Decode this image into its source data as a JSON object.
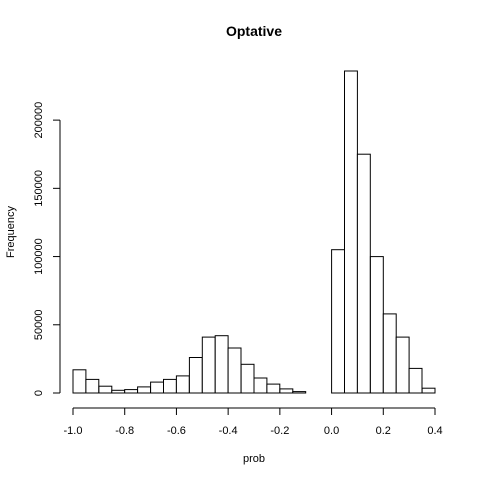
{
  "chart_data": {
    "type": "bar",
    "title": "Optative",
    "xlabel": "prob",
    "ylabel": "Frequency",
    "bin_width": 0.05,
    "bin_starts": [
      -1.0,
      -0.95,
      -0.9,
      -0.85,
      -0.8,
      -0.75,
      -0.7,
      -0.65,
      -0.6,
      -0.55,
      -0.5,
      -0.45,
      -0.4,
      -0.35,
      -0.3,
      -0.25,
      -0.2,
      -0.15,
      -0.1,
      -0.05,
      0.0,
      0.05,
      0.1,
      0.15,
      0.2,
      0.25,
      0.3,
      0.35
    ],
    "values": [
      17000,
      10000,
      5000,
      2000,
      2500,
      4500,
      8000,
      10000,
      12500,
      26000,
      41000,
      42000,
      33000,
      21000,
      11000,
      6500,
      3000,
      1000,
      0,
      0,
      105000,
      236000,
      175000,
      100000,
      58000,
      41000,
      18000,
      3500
    ],
    "xlim": [
      -1.0,
      0.4
    ],
    "ylim": [
      0,
      236000
    ],
    "x_ticks": [
      -1.0,
      -0.8,
      -0.6,
      -0.4,
      -0.2,
      0.0,
      0.2,
      0.4
    ],
    "x_tick_labels": [
      "-1.0",
      "-0.8",
      "-0.6",
      "-0.4",
      "-0.2",
      "0.0",
      "0.2",
      "0.4"
    ],
    "y_ticks": [
      0,
      50000,
      100000,
      150000,
      200000
    ],
    "y_tick_labels": [
      "0",
      "50000",
      "100000",
      "150000",
      "200000"
    ],
    "grid": false,
    "legend": "none"
  }
}
